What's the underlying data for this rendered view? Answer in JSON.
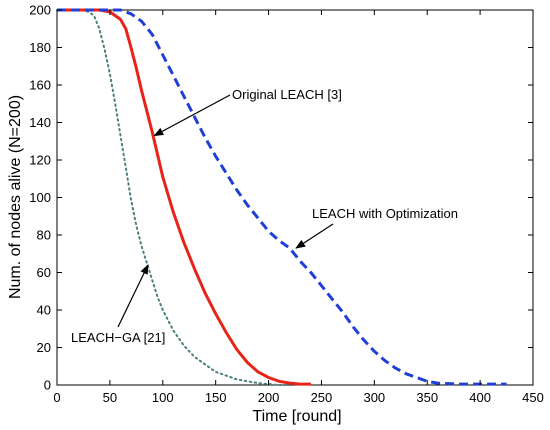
{
  "chart_data": {
    "type": "line",
    "title": "",
    "xlabel": "Time [round]",
    "ylabel": "Num. of nodes alive (N=200)",
    "xlim": [
      0,
      450
    ],
    "ylim": [
      0,
      200
    ],
    "xticks": [
      0,
      50,
      100,
      150,
      200,
      250,
      300,
      350,
      400,
      450
    ],
    "yticks": [
      0,
      20,
      40,
      60,
      80,
      100,
      120,
      140,
      160,
      180,
      200
    ],
    "grid": false,
    "legend": "none",
    "series": [
      {
        "name": "LEACH-GA [21]",
        "color": "#4a7f7f",
        "style": "dotted",
        "x": [
          0,
          25,
          30,
          35,
          40,
          45,
          50,
          55,
          60,
          65,
          70,
          75,
          80,
          85,
          90,
          95,
          100,
          110,
          120,
          130,
          140,
          150,
          160,
          170,
          180,
          190,
          200,
          210,
          220
        ],
        "y": [
          200,
          200,
          199,
          197,
          190,
          179,
          166,
          150,
          133,
          116,
          99,
          85,
          74,
          65,
          56,
          47,
          40,
          29,
          21,
          15,
          11,
          7,
          5,
          3,
          2,
          1,
          0.5,
          0,
          0
        ]
      },
      {
        "name": "Original LEACH [3]",
        "color": "#e8241a",
        "style": "solid",
        "x": [
          0,
          40,
          50,
          60,
          65,
          70,
          75,
          80,
          85,
          90,
          95,
          100,
          110,
          120,
          130,
          140,
          150,
          160,
          170,
          180,
          190,
          200,
          210,
          220,
          230,
          240
        ],
        "y": [
          200,
          200,
          199,
          195,
          190,
          180,
          169,
          157,
          146,
          135,
          123,
          111,
          92,
          76,
          62,
          49,
          38,
          28,
          19,
          12,
          7,
          4,
          2,
          1,
          0.5,
          0.5
        ]
      },
      {
        "name": "LEACH with Optimization",
        "color": "#1f3fd6",
        "style": "dashed",
        "x": [
          0,
          60,
          70,
          80,
          90,
          100,
          110,
          120,
          130,
          140,
          150,
          160,
          170,
          180,
          190,
          200,
          210,
          220,
          230,
          240,
          250,
          260,
          270,
          280,
          290,
          300,
          310,
          320,
          330,
          340,
          350,
          360,
          380,
          400,
          425
        ],
        "y": [
          200,
          200,
          198,
          194,
          187,
          176,
          165,
          154,
          143,
          132,
          122,
          113,
          104,
          96,
          89,
          82,
          77,
          73,
          66,
          60,
          53,
          46,
          39,
          31,
          24,
          18,
          13,
          9,
          6,
          4,
          2,
          1,
          0.5,
          0.5,
          0.5
        ]
      }
    ],
    "annotations": [
      {
        "text": "Original LEACH [3]",
        "arrow_to": [
          92,
          133
        ]
      },
      {
        "text": "LEACH with Optimization",
        "arrow_to": [
          226,
          73
        ]
      },
      {
        "text": "LEACH−GA [21]",
        "arrow_to": [
          86,
          64
        ]
      }
    ]
  }
}
